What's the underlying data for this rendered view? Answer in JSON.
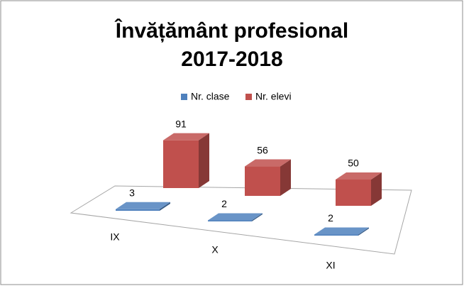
{
  "chart_data": {
    "type": "bar3d",
    "title": "Învățământ profesional\n2017-2018",
    "categories": [
      "IX",
      "X",
      "XI"
    ],
    "series": [
      {
        "name": "Nr. clase",
        "color": "#4f81bd",
        "values": [
          3,
          2,
          2
        ]
      },
      {
        "name": "Nr. elevi",
        "color": "#c0504d",
        "values": [
          91,
          56,
          50
        ]
      }
    ],
    "legend": "top"
  }
}
